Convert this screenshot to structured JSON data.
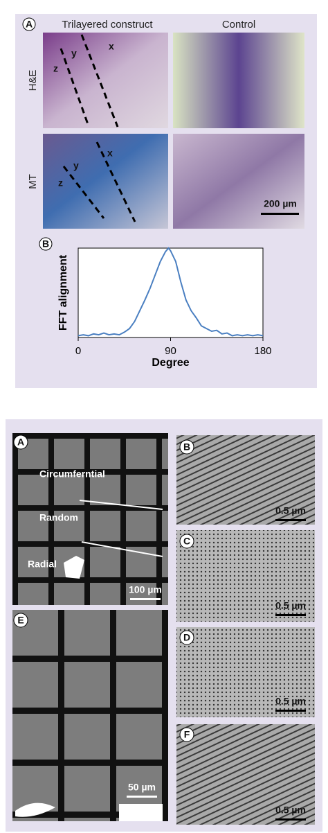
{
  "figure_top": {
    "panel_a_label": "A",
    "col_headers": [
      "Trilayered construct",
      "Control"
    ],
    "row_labels": [
      "H&E",
      "MT"
    ],
    "layer_labels_he": [
      "x",
      "y",
      "z"
    ],
    "layer_labels_mt": [
      "x",
      "y",
      "z"
    ],
    "scale_bar": "200 µm",
    "panel_b_label": "B"
  },
  "chart_data": {
    "type": "line",
    "xlabel": "Degree",
    "ylabel": "FFT alignment",
    "x": [
      0,
      5,
      10,
      15,
      20,
      25,
      30,
      35,
      40,
      45,
      50,
      55,
      60,
      65,
      70,
      75,
      80,
      85,
      88,
      90,
      95,
      100,
      105,
      110,
      115,
      120,
      125,
      130,
      135,
      140,
      145,
      150,
      155,
      160,
      165,
      170,
      175,
      180
    ],
    "values": [
      0.02,
      0.03,
      0.02,
      0.04,
      0.03,
      0.05,
      0.03,
      0.04,
      0.03,
      0.06,
      0.1,
      0.18,
      0.3,
      0.42,
      0.55,
      0.7,
      0.85,
      0.96,
      1.0,
      0.97,
      0.85,
      0.62,
      0.42,
      0.3,
      0.22,
      0.13,
      0.1,
      0.07,
      0.08,
      0.04,
      0.05,
      0.02,
      0.03,
      0.02,
      0.03,
      0.02,
      0.03,
      0.02
    ],
    "color": "#4a7fc1",
    "xlim": [
      0,
      180
    ],
    "xticks": [
      0,
      90,
      180
    ],
    "ylim": [
      0,
      1
    ]
  },
  "figure_bottom": {
    "panels": [
      {
        "letter": "A",
        "labels": [
          "Circumferntial",
          "Random",
          "Radial"
        ],
        "scale_bar": "100 µm"
      },
      {
        "letter": "B",
        "scale_bar": "0.5 µm"
      },
      {
        "letter": "C",
        "scale_bar": "0.5 µm"
      },
      {
        "letter": "D",
        "scale_bar": "0.5 µm"
      },
      {
        "letter": "E",
        "scale_bar": "50 µm"
      },
      {
        "letter": "F",
        "scale_bar": "0.5 µm"
      }
    ]
  }
}
